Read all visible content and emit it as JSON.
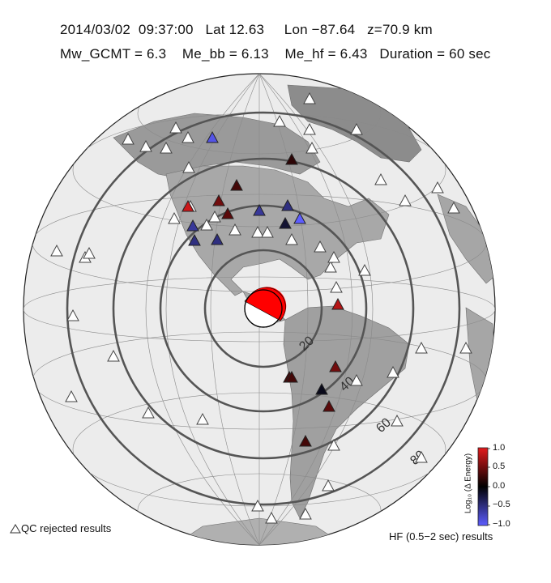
{
  "header": {
    "line1": "2014/03/02  09:37:00   Lat 12.63     Lon −87.64   z=70.9 km",
    "line2": "Mw_GCMT = 6.3    Me_bb = 6.13    Me_hf = 6.43   Duration = 60 sec"
  },
  "distance_rings": [
    {
      "label": "20",
      "deg": 20
    },
    {
      "label": "40",
      "deg": 40
    },
    {
      "label": "60",
      "deg": 60
    },
    {
      "label": "80",
      "deg": 80
    }
  ],
  "legend": {
    "qc_rejected": "QC rejected results",
    "hf_results": "HF (0.5−2 sec) results"
  },
  "colorbar": {
    "title": "Log₁₀ (Δ Energy)",
    "ticks": [
      "1.0",
      "0.5",
      "0.0",
      "−0.5",
      "−1.0"
    ],
    "colors": {
      "max": "#e31a1c",
      "mid": "#000000",
      "min": "#5d5dff"
    }
  },
  "stations": [
    {
      "value": -0.9,
      "region": "alaska"
    },
    {
      "value": 0.2,
      "region": "hudson-bay"
    },
    {
      "value": 0.3,
      "region": "canada-central"
    },
    {
      "value": 0.9,
      "region": "us-west-coast"
    },
    {
      "value": 0.5,
      "region": "us-northwest"
    },
    {
      "value": 0.4,
      "region": "us-northwest-2"
    },
    {
      "value": -0.6,
      "region": "us-north-central"
    },
    {
      "value": -0.5,
      "region": "great-lakes"
    },
    {
      "value": -1.0,
      "region": "great-lakes-east"
    },
    {
      "value": -0.2,
      "region": "us-midwest"
    },
    {
      "value": -0.6,
      "region": "california"
    },
    {
      "value": -0.5,
      "region": "us-southwest"
    },
    {
      "value": -0.5,
      "region": "us-southwest-2"
    },
    {
      "value": 0.8,
      "region": "caribbean"
    },
    {
      "value": 0.5,
      "region": "brazil"
    },
    {
      "value": 0.3,
      "region": "peru"
    },
    {
      "value": -0.1,
      "region": "bolivia"
    },
    {
      "value": 0.4,
      "region": "chile-north"
    },
    {
      "value": 0.3,
      "region": "chile-central"
    },
    {
      "value": 0.3,
      "region": "peru-2"
    }
  ]
}
